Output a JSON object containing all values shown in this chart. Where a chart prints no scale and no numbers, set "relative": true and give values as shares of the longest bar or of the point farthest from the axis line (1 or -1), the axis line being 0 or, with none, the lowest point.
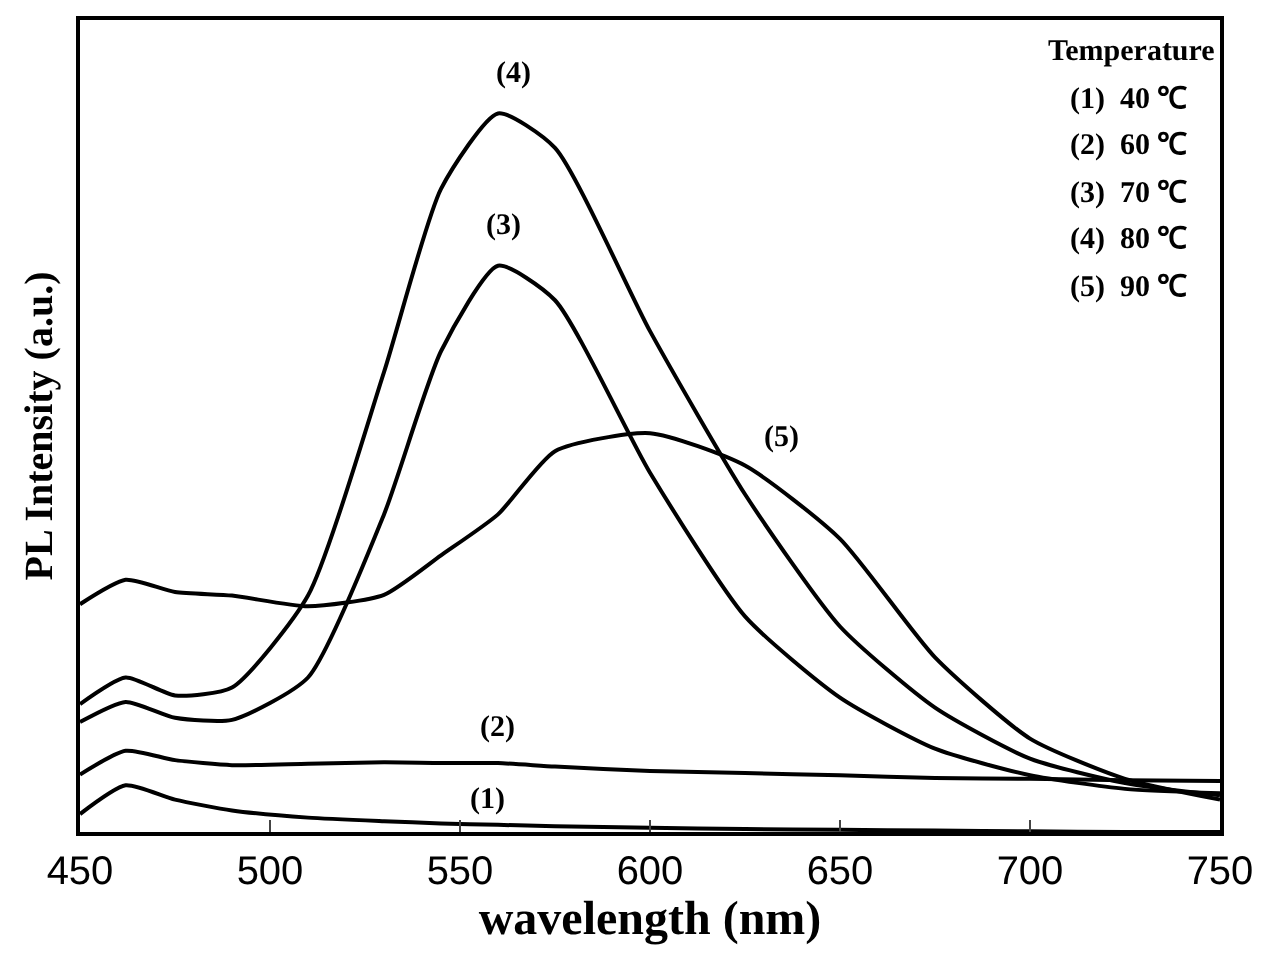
{
  "chart_data": {
    "type": "line",
    "relative": true,
    "xlabel": "wavelength (nm)",
    "ylabel": "PL Intensity (a.u.)",
    "x": [
      450,
      462,
      475,
      490,
      510,
      530,
      545,
      560,
      575,
      600,
      625,
      650,
      675,
      700,
      725,
      750
    ],
    "xlim": [
      450,
      750
    ],
    "xticks": [
      450,
      500,
      550,
      600,
      650,
      700,
      750
    ],
    "tick_labels": "x",
    "legend": false,
    "marker": "none",
    "line_style": "solid",
    "series": [
      {
        "name": "(1)",
        "color": "#000000",
        "values": [
          0.025,
          0.065,
          0.045,
          0.03,
          0.02,
          0.015,
          0.012,
          0.01,
          0.008,
          0.006,
          0.004,
          0.003,
          0.002,
          0.001,
          0.0,
          0.0
        ]
      },
      {
        "name": "(2)",
        "color": "#000000",
        "values": [
          0.08,
          0.113,
          0.1,
          0.093,
          0.095,
          0.097,
          0.096,
          0.096,
          0.091,
          0.085,
          0.082,
          0.079,
          0.075,
          0.074,
          0.072,
          0.071
        ]
      },
      {
        "name": "(3)",
        "color": "#000000",
        "values": [
          0.153,
          0.181,
          0.159,
          0.156,
          0.215,
          0.442,
          0.669,
          0.788,
          0.74,
          0.5,
          0.3,
          0.187,
          0.116,
          0.079,
          0.06,
          0.054
        ]
      },
      {
        "name": "(4)",
        "color": "#000000",
        "values": [
          0.178,
          0.215,
          0.19,
          0.201,
          0.329,
          0.64,
          0.895,
          1.0,
          0.952,
          0.697,
          0.47,
          0.286,
          0.173,
          0.102,
          0.068,
          0.051
        ]
      },
      {
        "name": "(5)",
        "color": "#000000",
        "values": [
          0.317,
          0.351,
          0.334,
          0.329,
          0.314,
          0.33,
          0.385,
          0.442,
          0.53,
          0.555,
          0.51,
          0.408,
          0.243,
          0.13,
          0.074,
          0.045
        ]
      }
    ],
    "annotations": [
      "Temperature",
      "(1)  40 ℃",
      "(2)  60 ℃",
      "(3)  70 ℃",
      "(4)  80 ℃",
      "(5)  90 ℃"
    ]
  }
}
